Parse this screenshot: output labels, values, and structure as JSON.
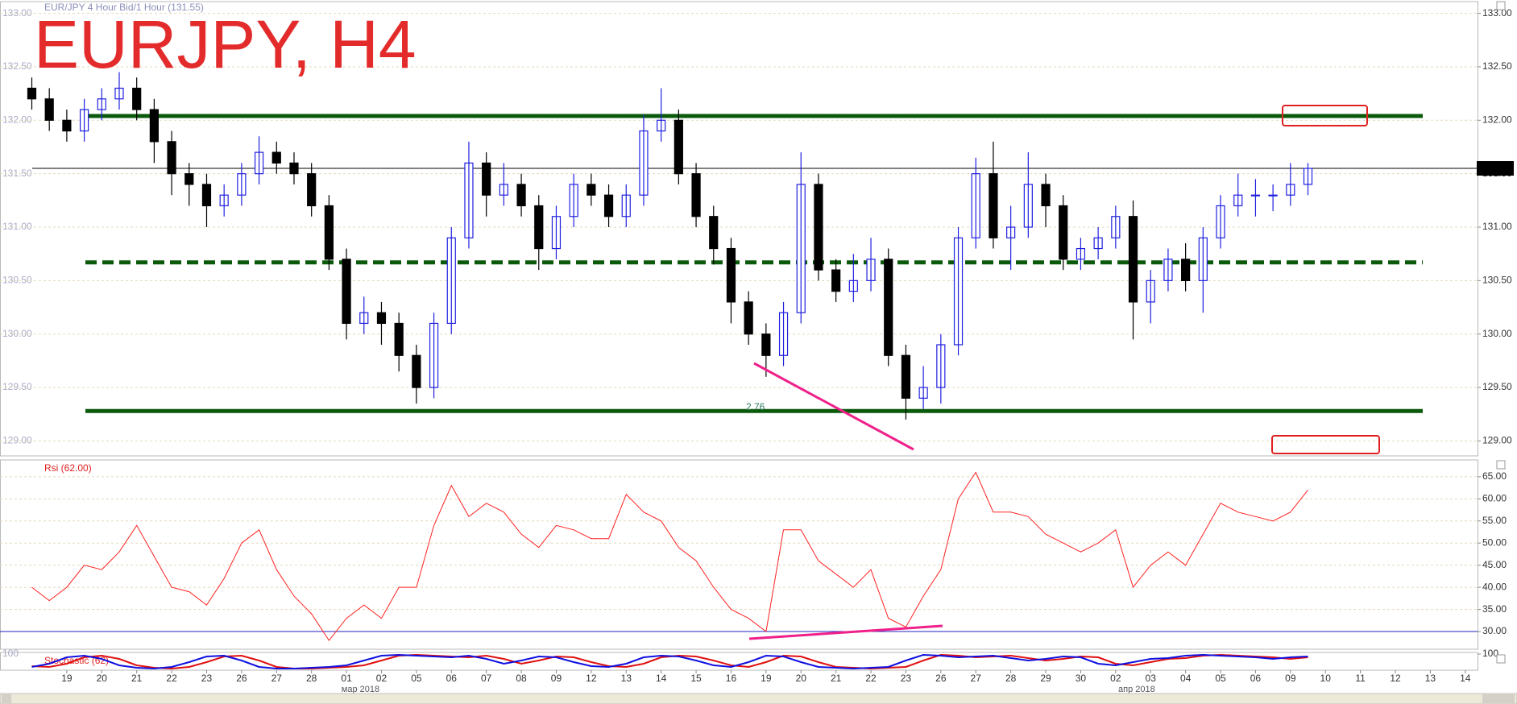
{
  "chart_data": [
    {
      "type": "candlestick",
      "title": "EURJPY, H4",
      "subtitle": "EUR/JPY 4 Hour Bid/1 Hour (131.55)",
      "x": [
        -1,
        -0.5,
        0,
        0.5,
        1,
        1.5,
        2,
        2.5,
        3,
        3.5,
        4,
        4.5,
        5,
        5.5,
        6,
        6.5,
        7,
        7.5,
        8,
        8.5,
        9,
        9.5,
        10,
        10.5,
        11,
        11.5,
        12,
        12.5,
        13,
        13.5,
        14,
        14.5,
        15,
        15.5,
        16,
        16.5,
        17,
        17.5,
        18,
        18.5,
        19,
        19.5,
        20,
        20.5,
        21,
        21.5,
        22,
        22.5,
        23,
        23.5,
        24,
        24.5,
        25,
        25.5,
        26,
        26.5,
        27,
        27.5,
        28,
        28.5,
        29,
        29.5,
        30,
        30.5,
        31,
        31.5,
        32,
        32.5,
        33,
        33.5,
        34,
        34.5,
        35,
        35.5
      ],
      "open": [
        132.3,
        132.2,
        132.0,
        131.9,
        132.1,
        132.2,
        132.3,
        132.1,
        131.8,
        131.5,
        131.4,
        131.2,
        131.3,
        131.5,
        131.7,
        131.6,
        131.5,
        131.2,
        130.7,
        130.1,
        130.2,
        130.1,
        129.8,
        129.5,
        130.1,
        130.9,
        131.6,
        131.3,
        131.4,
        131.2,
        130.8,
        131.1,
        131.4,
        131.3,
        131.1,
        131.3,
        131.9,
        132.0,
        131.5,
        131.1,
        130.8,
        130.3,
        130.0,
        129.8,
        130.2,
        131.4,
        130.6,
        130.4,
        130.5,
        130.7,
        129.8,
        129.4,
        129.5,
        129.9,
        130.9,
        131.5,
        130.9,
        131.0,
        131.4,
        131.2,
        130.7,
        130.8,
        130.9,
        131.1,
        130.3,
        130.5,
        130.7,
        130.5,
        130.9,
        131.2,
        131.3,
        131.3,
        131.3,
        131.4
      ],
      "high": [
        132.4,
        132.3,
        132.1,
        132.2,
        132.3,
        132.45,
        132.4,
        132.2,
        131.9,
        131.6,
        131.5,
        131.4,
        131.6,
        131.85,
        131.8,
        131.7,
        131.6,
        131.3,
        130.8,
        130.35,
        130.3,
        130.2,
        129.9,
        130.2,
        131.0,
        131.8,
        131.7,
        131.6,
        131.5,
        131.3,
        131.2,
        131.5,
        131.5,
        131.4,
        131.4,
        132.05,
        132.3,
        132.1,
        131.6,
        131.2,
        130.9,
        130.4,
        130.1,
        130.3,
        131.7,
        131.5,
        130.7,
        130.75,
        130.9,
        130.8,
        129.9,
        129.7,
        130.0,
        131.0,
        131.65,
        131.8,
        131.2,
        131.7,
        131.5,
        131.3,
        130.9,
        131.0,
        131.2,
        131.25,
        130.6,
        130.8,
        130.85,
        131.0,
        131.3,
        131.5,
        131.45,
        131.4,
        131.6,
        131.6
      ],
      "low": [
        132.1,
        131.9,
        131.8,
        131.8,
        132.0,
        132.1,
        132.0,
        131.6,
        131.3,
        131.2,
        131.0,
        131.1,
        131.2,
        131.4,
        131.5,
        131.4,
        131.1,
        130.6,
        129.95,
        130.0,
        129.9,
        129.65,
        129.35,
        129.4,
        130.0,
        130.8,
        131.1,
        131.2,
        131.1,
        130.6,
        130.7,
        131.0,
        131.2,
        131.0,
        131.0,
        131.2,
        131.8,
        131.4,
        131.0,
        130.65,
        130.1,
        129.9,
        129.6,
        129.7,
        130.1,
        130.5,
        130.3,
        130.3,
        130.4,
        129.7,
        129.2,
        129.3,
        129.35,
        129.8,
        130.8,
        130.8,
        130.6,
        130.9,
        131.0,
        130.6,
        130.6,
        130.7,
        130.8,
        129.95,
        130.1,
        130.4,
        130.4,
        130.2,
        130.8,
        131.1,
        131.1,
        131.15,
        131.2,
        131.3
      ],
      "close": [
        132.2,
        132.0,
        131.9,
        132.1,
        132.2,
        132.3,
        132.1,
        131.8,
        131.5,
        131.4,
        131.2,
        131.3,
        131.5,
        131.7,
        131.6,
        131.5,
        131.2,
        130.7,
        130.1,
        130.2,
        130.1,
        129.8,
        129.5,
        130.1,
        130.9,
        131.6,
        131.3,
        131.4,
        131.2,
        130.8,
        131.1,
        131.4,
        131.3,
        131.1,
        131.3,
        131.9,
        132.0,
        131.5,
        131.1,
        130.8,
        130.3,
        130.0,
        129.8,
        130.2,
        131.4,
        130.6,
        130.4,
        130.5,
        130.7,
        129.8,
        129.4,
        129.5,
        129.9,
        130.9,
        131.5,
        130.9,
        131.0,
        131.4,
        131.2,
        130.7,
        130.8,
        130.9,
        131.1,
        130.3,
        130.5,
        130.7,
        130.5,
        130.9,
        131.2,
        131.3,
        131.3,
        131.3,
        131.4,
        131.55
      ],
      "up_color": "#2020e0",
      "down_color": "#000000",
      "xlim": [
        -1.91,
        40.35
      ],
      "ylim": [
        128.86,
        133.11
      ],
      "yticks": [
        {
          "value": 129,
          "label": "129.00"
        },
        {
          "value": 129.5,
          "label": "129.50"
        },
        {
          "value": 130,
          "label": "130.00"
        },
        {
          "value": 130.5,
          "label": "130.50"
        },
        {
          "value": 131,
          "label": "131.00"
        },
        {
          "value": 131.5,
          "label": "131.50"
        },
        {
          "value": 132,
          "label": "132.00"
        },
        {
          "value": 132.5,
          "label": "132.50"
        },
        {
          "value": 133,
          "label": "133.00"
        }
      ],
      "grid": true,
      "levels": [
        {
          "value": 132.04,
          "style": "solid",
          "color": "#0b5a0b"
        },
        {
          "value": 130.67,
          "style": "dashed",
          "color": "#0b5a0b"
        },
        {
          "value": 129.28,
          "style": "solid",
          "color": "#0b5a0b"
        }
      ],
      "last_price": 131.55,
      "annotations": [
        {
          "text": "2.76"
        }
      ]
    },
    {
      "type": "line",
      "title": "Rsi (62.00)",
      "color": "#ff2020",
      "x": [
        -1,
        -0.5,
        0,
        0.5,
        1,
        1.5,
        2,
        2.5,
        3,
        3.5,
        4,
        4.5,
        5,
        5.5,
        6,
        6.5,
        7,
        7.5,
        8,
        8.5,
        9,
        9.5,
        10,
        10.5,
        11,
        11.5,
        12,
        12.5,
        13,
        13.5,
        14,
        14.5,
        15,
        15.5,
        16,
        16.5,
        17,
        17.5,
        18,
        18.5,
        19,
        19.5,
        20,
        20.5,
        21,
        21.5,
        22,
        22.5,
        23,
        23.5,
        24,
        24.5,
        25,
        25.5,
        26,
        26.5,
        27,
        27.5,
        28,
        28.5,
        29,
        29.5,
        30,
        30.5,
        31,
        31.5,
        32,
        32.5,
        33,
        33.5,
        34,
        34.5,
        35,
        35.5
      ],
      "values": [
        40,
        37,
        40,
        45,
        44,
        48,
        54,
        47,
        40,
        39,
        36,
        42,
        50,
        53,
        44,
        38,
        34,
        28,
        33,
        36,
        33,
        40,
        40,
        54,
        63,
        56,
        59,
        57,
        52,
        49,
        54,
        53,
        51,
        51,
        61,
        57,
        55,
        49,
        46,
        40,
        35,
        33,
        30,
        53,
        53,
        46,
        43,
        40,
        44,
        33,
        31,
        38,
        44,
        60,
        66,
        57,
        57,
        56,
        52,
        50,
        48,
        50,
        53,
        40,
        45,
        48,
        45,
        52,
        59,
        57,
        56,
        55,
        57,
        62
      ],
      "xlim": [
        -1.91,
        40.35
      ],
      "ylim": [
        26,
        68.8
      ],
      "yticks": [
        {
          "value": 30,
          "label": "30.00"
        },
        {
          "value": 35,
          "label": "35.00"
        },
        {
          "value": 40,
          "label": "40.00"
        },
        {
          "value": 45,
          "label": "45.00"
        },
        {
          "value": 50,
          "label": "50.00"
        },
        {
          "value": 55,
          "label": "55.00"
        },
        {
          "value": 60,
          "label": "60.00"
        },
        {
          "value": 65,
          "label": "65.00"
        }
      ],
      "grid": true,
      "levels": [
        {
          "value": 30,
          "style": "solid",
          "color": "#2020c0"
        }
      ]
    },
    {
      "type": "line",
      "title": "Stochastic (62)",
      "x": [
        -1,
        -0.5,
        0,
        0.5,
        1,
        1.5,
        2,
        2.5,
        3,
        3.5,
        4,
        4.5,
        5,
        5.5,
        6,
        6.5,
        7,
        7.5,
        8,
        8.5,
        9,
        9.5,
        10,
        10.5,
        11,
        11.5,
        12,
        12.5,
        13,
        13.5,
        14,
        14.5,
        15,
        15.5,
        16,
        16.5,
        17,
        17.5,
        18,
        18.5,
        19,
        19.5,
        20,
        20.5,
        21,
        21.5,
        22,
        22.5,
        23,
        23.5,
        24,
        24.5,
        25,
        25.5,
        26,
        26.5,
        27,
        27.5,
        28,
        28.5,
        29,
        29.5,
        30,
        30.5,
        31,
        31.5,
        32,
        32.5,
        33,
        33.5,
        34,
        34.5,
        35,
        35.5
      ],
      "series": [
        {
          "color": "#1010e0",
          "values": [
            20,
            40,
            80,
            90,
            70,
            30,
            15,
            10,
            20,
            50,
            85,
            90,
            60,
            20,
            10,
            10,
            15,
            20,
            30,
            60,
            90,
            95,
            90,
            85,
            80,
            90,
            70,
            40,
            60,
            85,
            80,
            50,
            25,
            20,
            40,
            80,
            90,
            85,
            60,
            30,
            20,
            50,
            90,
            85,
            50,
            20,
            15,
            10,
            15,
            20,
            60,
            95,
            90,
            80,
            85,
            90,
            75,
            60,
            70,
            85,
            80,
            40,
            30,
            50,
            70,
            75,
            90,
            95,
            90,
            85,
            80,
            70,
            80,
            85
          ]
        },
        {
          "color": "#e01010",
          "values": [
            25,
            20,
            40,
            80,
            90,
            70,
            30,
            15,
            10,
            20,
            50,
            85,
            90,
            60,
            20,
            10,
            10,
            15,
            20,
            30,
            60,
            90,
            95,
            90,
            85,
            80,
            90,
            70,
            40,
            60,
            85,
            80,
            50,
            25,
            20,
            40,
            80,
            90,
            85,
            60,
            30,
            20,
            50,
            90,
            85,
            50,
            20,
            15,
            10,
            15,
            20,
            60,
            95,
            90,
            80,
            85,
            90,
            75,
            60,
            70,
            85,
            80,
            40,
            30,
            50,
            70,
            75,
            90,
            95,
            90,
            85,
            80,
            70,
            80
          ]
        }
      ],
      "xlim": [
        -1.91,
        40.35
      ],
      "ylim": [
        0,
        110
      ],
      "yticks": [
        100
      ],
      "grid": false,
      "xticks": [
        {
          "value": 0,
          "label": "19"
        },
        {
          "value": 1,
          "label": "20"
        },
        {
          "value": 2,
          "label": "21"
        },
        {
          "value": 3,
          "label": "22"
        },
        {
          "value": 4,
          "label": "23"
        },
        {
          "value": 5,
          "label": "26"
        },
        {
          "value": 6,
          "label": "27"
        },
        {
          "value": 7,
          "label": "28"
        },
        {
          "value": 8,
          "label": "01"
        },
        {
          "value": 9,
          "label": "02"
        },
        {
          "value": 10,
          "label": "05"
        },
        {
          "value": 11,
          "label": "06"
        },
        {
          "value": 12,
          "label": "07"
        },
        {
          "value": 13,
          "label": "08"
        },
        {
          "value": 14,
          "label": "09"
        },
        {
          "value": 15,
          "label": "12"
        },
        {
          "value": 16,
          "label": "13"
        },
        {
          "value": 17,
          "label": "14"
        },
        {
          "value": 18,
          "label": "15"
        },
        {
          "value": 19,
          "label": "16"
        },
        {
          "value": 20,
          "label": "19"
        },
        {
          "value": 21,
          "label": "20"
        },
        {
          "value": 22,
          "label": "21"
        },
        {
          "value": 23,
          "label": "22"
        },
        {
          "value": 24,
          "label": "23"
        },
        {
          "value": 25,
          "label": "26"
        },
        {
          "value": 26,
          "label": "27"
        },
        {
          "value": 27,
          "label": "28"
        },
        {
          "value": 28,
          "label": "29"
        },
        {
          "value": 29,
          "label": "30"
        },
        {
          "value": 30,
          "label": "02"
        },
        {
          "value": 31,
          "label": "03"
        },
        {
          "value": 32,
          "label": "04"
        },
        {
          "value": 33,
          "label": "05"
        },
        {
          "value": 34,
          "label": "06"
        },
        {
          "value": 35,
          "label": "09"
        },
        {
          "value": 36,
          "label": "10"
        },
        {
          "value": 37,
          "label": "11"
        },
        {
          "value": 38,
          "label": "12"
        },
        {
          "value": 39,
          "label": "13"
        },
        {
          "value": 40,
          "label": "14"
        }
      ],
      "x_sublabels": [
        {
          "value": 8.4,
          "label": "мар 2018"
        },
        {
          "value": 30.6,
          "label": "апр 2018"
        }
      ]
    }
  ]
}
